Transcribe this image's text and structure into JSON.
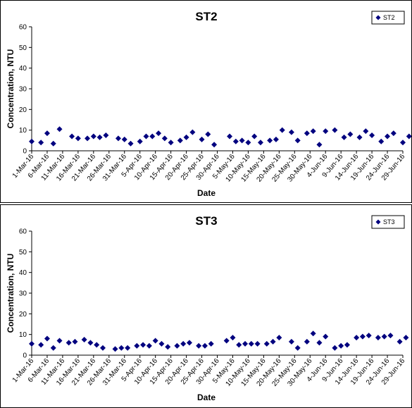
{
  "chart_data": [
    {
      "type": "scatter",
      "title": "ST2",
      "xlabel": "Date",
      "ylabel": "Concentration, NTU",
      "ylim": [
        0,
        60
      ],
      "yticks": [
        "0",
        "10",
        "20",
        "30",
        "40",
        "50",
        "60"
      ],
      "xlim": [
        "1-Mar-16",
        "29-Jun-16"
      ],
      "xticks": [
        "1-Mar-16",
        "6-Mar-16",
        "11-Mar-16",
        "16-Mar-16",
        "21-Mar-16",
        "26-Mar-16",
        "31-Mar-16",
        "5-Apr-16",
        "10-Apr-16",
        "15-Apr-16",
        "20-Apr-16",
        "25-Apr-16",
        "30-Apr-16",
        "5-May-16",
        "10-May-16",
        "15-May-16",
        "20-May-16",
        "25-May-16",
        "30-May-16",
        "4-Jun-16",
        "9-Jun-16",
        "14-Jun-16",
        "19-Jun-16",
        "24-Jun-16",
        "29-Jun-16"
      ],
      "legend": "top-right",
      "grid": false,
      "marker_color": "#00007f",
      "series": [
        {
          "name": "ST2",
          "points": [
            [
              "1-Mar-16",
              4.5
            ],
            [
              "4-Mar-16",
              4.0
            ],
            [
              "6-Mar-16",
              8.5
            ],
            [
              "8-Mar-16",
              3.5
            ],
            [
              "10-Mar-16",
              10.5
            ],
            [
              "14-Mar-16",
              7.0
            ],
            [
              "16-Mar-16",
              6.0
            ],
            [
              "19-Mar-16",
              6.0
            ],
            [
              "21-Mar-16",
              7.0
            ],
            [
              "23-Mar-16",
              6.5
            ],
            [
              "25-Mar-16",
              7.5
            ],
            [
              "29-Mar-16",
              6.0
            ],
            [
              "31-Mar-16",
              5.5
            ],
            [
              "2-Apr-16",
              3.5
            ],
            [
              "5-Apr-16",
              4.5
            ],
            [
              "7-Apr-16",
              7.0
            ],
            [
              "9-Apr-16",
              7.0
            ],
            [
              "11-Apr-16",
              8.5
            ],
            [
              "13-Apr-16",
              6.0
            ],
            [
              "15-Apr-16",
              4.0
            ],
            [
              "18-Apr-16",
              5.0
            ],
            [
              "20-Apr-16",
              6.5
            ],
            [
              "22-Apr-16",
              9.0
            ],
            [
              "25-Apr-16",
              5.5
            ],
            [
              "27-Apr-16",
              8.0
            ],
            [
              "29-Apr-16",
              3.0
            ],
            [
              "4-May-16",
              7.0
            ],
            [
              "6-May-16",
              4.5
            ],
            [
              "8-May-16",
              5.0
            ],
            [
              "10-May-16",
              4.0
            ],
            [
              "12-May-16",
              7.0
            ],
            [
              "14-May-16",
              4.0
            ],
            [
              "17-May-16",
              5.0
            ],
            [
              "19-May-16",
              5.5
            ],
            [
              "21-May-16",
              10.0
            ],
            [
              "24-May-16",
              9.0
            ],
            [
              "26-May-16",
              5.0
            ],
            [
              "29-May-16",
              8.5
            ],
            [
              "31-May-16",
              9.5
            ],
            [
              "2-Jun-16",
              3.0
            ],
            [
              "4-Jun-16",
              9.5
            ],
            [
              "7-Jun-16",
              10.0
            ],
            [
              "10-Jun-16",
              6.5
            ],
            [
              "12-Jun-16",
              8.0
            ],
            [
              "15-Jun-16",
              6.5
            ],
            [
              "17-Jun-16",
              9.5
            ],
            [
              "19-Jun-16",
              7.5
            ],
            [
              "22-Jun-16",
              4.5
            ],
            [
              "24-Jun-16",
              7.0
            ],
            [
              "26-Jun-16",
              8.5
            ],
            [
              "29-Jun-16",
              4.0
            ],
            [
              "1-Jul-16",
              7.0
            ]
          ]
        }
      ]
    },
    {
      "type": "scatter",
      "title": "ST3",
      "xlabel": "Date",
      "ylabel": "Concentration, NTU",
      "ylim": [
        0,
        60
      ],
      "yticks": [
        "0",
        "10",
        "20",
        "30",
        "40",
        "50",
        "60"
      ],
      "xlim": [
        "1-Mar-16",
        "29-Jun-16"
      ],
      "xticks": [
        "1-Mar-16",
        "6-Mar-16",
        "11-Mar-16",
        "16-Mar-16",
        "21-Mar-16",
        "26-Mar-16",
        "31-Mar-16",
        "5-Apr-16",
        "10-Apr-16",
        "15-Apr-16",
        "20-Apr-16",
        "25-Apr-16",
        "30-Apr-16",
        "5-May-16",
        "10-May-16",
        "15-May-16",
        "20-May-16",
        "25-May-16",
        "30-May-16",
        "4-Jun-16",
        "9-Jun-16",
        "14-Jun-16",
        "19-Jun-16",
        "24-Jun-16",
        "29-Jun-16"
      ],
      "legend": "top-right",
      "grid": false,
      "marker_color": "#00007f",
      "series": [
        {
          "name": "ST3",
          "points": [
            [
              "1-Mar-16",
              5.5
            ],
            [
              "4-Mar-16",
              5.0
            ],
            [
              "6-Mar-16",
              8.0
            ],
            [
              "8-Mar-16",
              3.5
            ],
            [
              "10-Mar-16",
              7.0
            ],
            [
              "13-Mar-16",
              6.0
            ],
            [
              "15-Mar-16",
              6.5
            ],
            [
              "18-Mar-16",
              7.5
            ],
            [
              "20-Mar-16",
              6.0
            ],
            [
              "22-Mar-16",
              5.0
            ],
            [
              "24-Mar-16",
              3.5
            ],
            [
              "28-Mar-16",
              3.0
            ],
            [
              "30-Mar-16",
              3.5
            ],
            [
              "1-Apr-16",
              3.5
            ],
            [
              "4-Apr-16",
              4.5
            ],
            [
              "6-Apr-16",
              5.0
            ],
            [
              "8-Apr-16",
              4.5
            ],
            [
              "10-Apr-16",
              7.0
            ],
            [
              "12-Apr-16",
              5.5
            ],
            [
              "14-Apr-16",
              4.0
            ],
            [
              "17-Apr-16",
              4.5
            ],
            [
              "19-Apr-16",
              5.5
            ],
            [
              "21-Apr-16",
              6.0
            ],
            [
              "24-Apr-16",
              4.5
            ],
            [
              "26-Apr-16",
              4.5
            ],
            [
              "28-Apr-16",
              5.5
            ],
            [
              "3-May-16",
              7.0
            ],
            [
              "5-May-16",
              8.5
            ],
            [
              "7-May-16",
              5.0
            ],
            [
              "9-May-16",
              5.5
            ],
            [
              "11-May-16",
              5.5
            ],
            [
              "13-May-16",
              5.5
            ],
            [
              "16-May-16",
              5.5
            ],
            [
              "18-May-16",
              6.5
            ],
            [
              "20-May-16",
              8.5
            ],
            [
              "24-May-16",
              6.5
            ],
            [
              "26-May-16",
              3.5
            ],
            [
              "29-May-16",
              6.5
            ],
            [
              "31-May-16",
              10.5
            ],
            [
              "2-Jun-16",
              6.0
            ],
            [
              "4-Jun-16",
              9.0
            ],
            [
              "7-Jun-16",
              3.5
            ],
            [
              "9-Jun-16",
              4.5
            ],
            [
              "11-Jun-16",
              5.0
            ],
            [
              "14-Jun-16",
              8.5
            ],
            [
              "16-Jun-16",
              9.0
            ],
            [
              "18-Jun-16",
              9.5
            ],
            [
              "21-Jun-16",
              8.5
            ],
            [
              "23-Jun-16",
              9.0
            ],
            [
              "25-Jun-16",
              9.5
            ],
            [
              "28-Jun-16",
              6.5
            ],
            [
              "30-Jun-16",
              8.5
            ]
          ]
        }
      ]
    }
  ]
}
